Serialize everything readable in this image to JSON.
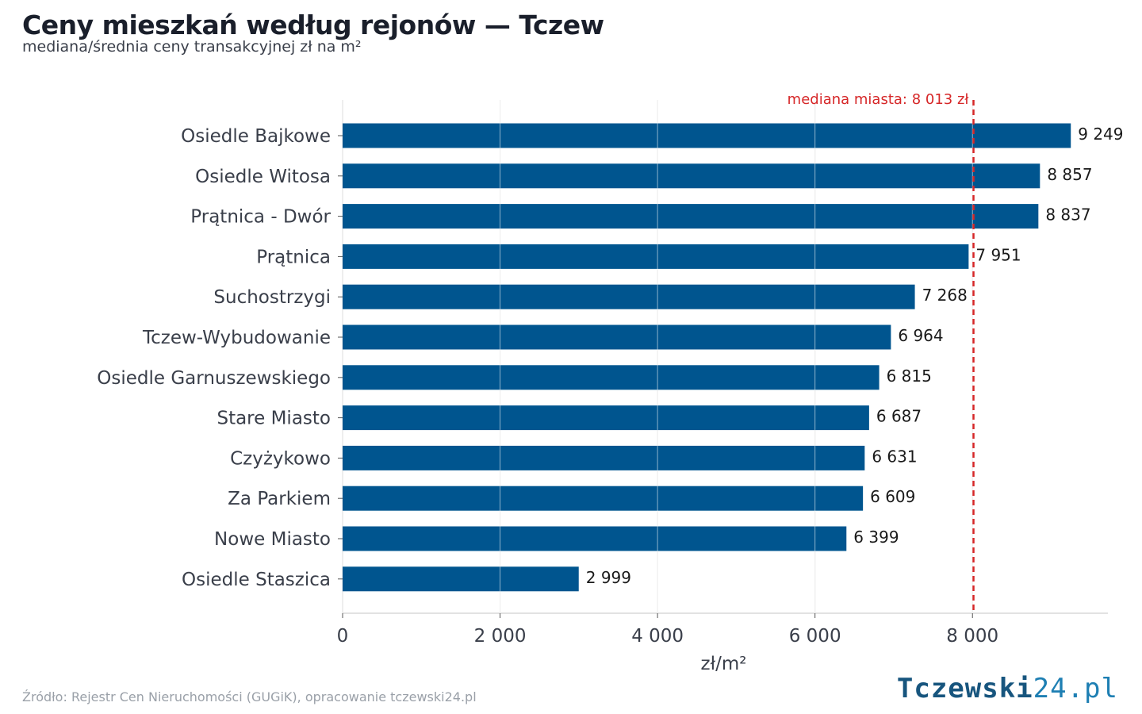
{
  "title": "Ceny mieszkań według rejonów — Tczew",
  "subtitle": "mediana/średnia ceny transakcyjnej zł na m²",
  "source": "Źródło: Rejestr Cen Nieruchomości (GUGiK), opracowanie tczewski24.pl",
  "logo": {
    "main": "Tczewski",
    "accent": "24.pl"
  },
  "chart_data": {
    "type": "bar",
    "orientation": "horizontal",
    "categories": [
      "Osiedle Bajkowe",
      "Osiedle Witosa",
      "Prątnica - Dwór",
      "Prątnica",
      "Suchostrzygi",
      "Tczew-Wybudowanie",
      "Osiedle Garnuszewskiego",
      "Stare Miasto",
      "Czyżykowo",
      "Za Parkiem",
      "Nowe Miasto",
      "Osiedle Staszica"
    ],
    "values": [
      9249,
      8857,
      8837,
      7951,
      7268,
      6964,
      6815,
      6687,
      6631,
      6609,
      6399,
      2999
    ],
    "value_labels": [
      "9 249",
      "8 857",
      "8 837",
      "7 951",
      "7 268",
      "6 964",
      "6 815",
      "6 687",
      "6 631",
      "6 609",
      "6 399",
      "2 999"
    ],
    "xlabel": "zł/m²",
    "ylabel": "",
    "xlim": [
      0,
      9720
    ],
    "xticks": [
      0,
      2000,
      4000,
      6000,
      8000
    ],
    "xtick_labels": [
      "0",
      "2 000",
      "4 000",
      "6 000",
      "8 000"
    ],
    "grid": "vertical",
    "reference_line": {
      "value": 8013,
      "label": "mediana miasta: 8 013 zł",
      "color": "#d62728",
      "style": "dashed"
    },
    "bar_color": "#00558f"
  }
}
